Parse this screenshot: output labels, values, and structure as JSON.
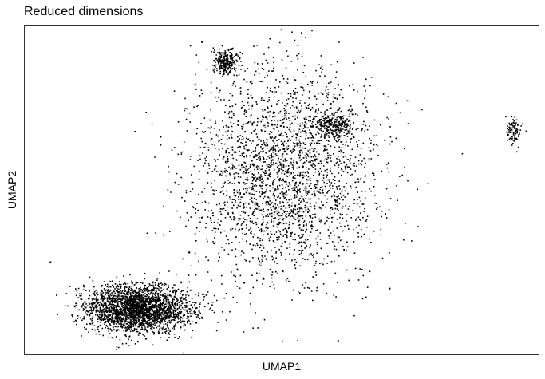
{
  "chart_data": {
    "type": "scatter",
    "title": "Reduced dimensions",
    "xlabel": "UMAP1",
    "ylabel": "UMAP2",
    "grid": false,
    "legend": "none",
    "axis_ticks": false,
    "point_color": "#000000",
    "clusters": [
      {
        "label": "main-mass",
        "center": [
          0.5,
          0.55
        ],
        "spread": [
          0.09,
          0.16
        ],
        "density": "very-high"
      },
      {
        "label": "lower-left-cluster",
        "center": [
          0.22,
          0.14
        ],
        "spread": [
          0.05,
          0.035
        ],
        "density": "very-high"
      },
      {
        "label": "upper-small-cluster",
        "center": [
          0.39,
          0.89
        ],
        "spread": [
          0.012,
          0.018
        ],
        "density": "high"
      },
      {
        "label": "right-arm",
        "center": [
          0.6,
          0.7
        ],
        "spread": [
          0.02,
          0.02
        ],
        "density": "high"
      },
      {
        "label": "far-right-crescent",
        "center": [
          0.95,
          0.68
        ],
        "spread": [
          0.008,
          0.02
        ],
        "density": "medium"
      }
    ],
    "outliers": [
      [
        0.345,
        0.95
      ],
      [
        0.61,
        0.82
      ],
      [
        0.47,
        0.29
      ],
      [
        0.05,
        0.28
      ],
      [
        0.32,
        0.31
      ],
      [
        0.71,
        0.2
      ],
      [
        0.61,
        0.04
      ],
      [
        0.64,
        0.66
      ]
    ]
  }
}
